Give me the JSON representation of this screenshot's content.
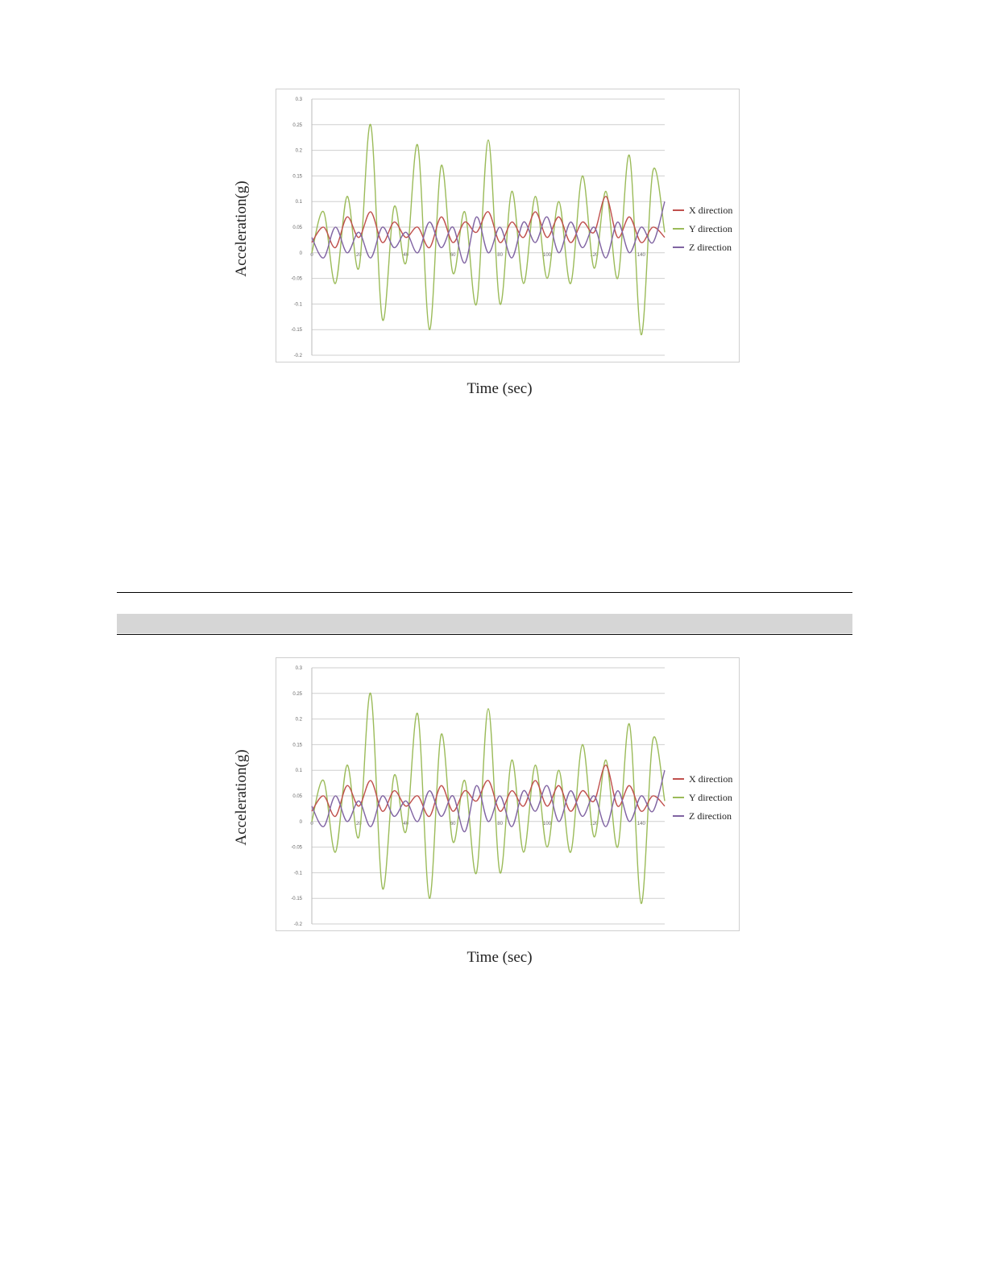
{
  "figures": [
    {
      "ylabel": "Acceleration(g)",
      "xlabel": "Time (sec)"
    },
    {
      "ylabel": "Acceleration(g)",
      "xlabel": "Time (sec)"
    }
  ],
  "chart_data": [
    {
      "type": "line",
      "xlabel": "Time (sec)",
      "ylabel": "Acceleration(g)",
      "xlim": [
        0,
        150
      ],
      "ylim": [
        -0.2,
        0.3
      ],
      "x_ticks": [
        "0",
        "20",
        "40",
        "60",
        "80",
        "100",
        "120",
        "140"
      ],
      "y_ticks": [
        "0.3",
        "0.25",
        "0.2",
        "0.15",
        "0.1",
        "0.05",
        "0",
        "-0.05",
        "-0.1",
        "-0.15",
        "-0.2"
      ],
      "grid": true,
      "legend_position": "right",
      "series": [
        {
          "name": "X direction",
          "color": "#c0504d",
          "x": [
            0,
            5,
            10,
            15,
            20,
            25,
            30,
            35,
            40,
            45,
            50,
            55,
            60,
            65,
            70,
            75,
            80,
            85,
            90,
            95,
            100,
            105,
            110,
            115,
            120,
            125,
            130,
            135,
            140,
            145,
            150
          ],
          "y": [
            0.02,
            0.05,
            0.01,
            0.07,
            0.03,
            0.08,
            0.02,
            0.06,
            0.03,
            0.05,
            0.01,
            0.07,
            0.02,
            0.06,
            0.04,
            0.08,
            0.02,
            0.06,
            0.03,
            0.08,
            0.03,
            0.07,
            0.02,
            0.06,
            0.04,
            0.11,
            0.03,
            0.07,
            0.02,
            0.05,
            0.03
          ]
        },
        {
          "name": "Y direction",
          "color": "#9bbb59",
          "x": [
            0,
            5,
            10,
            15,
            20,
            25,
            30,
            35,
            40,
            45,
            50,
            55,
            60,
            65,
            70,
            75,
            80,
            85,
            90,
            95,
            100,
            105,
            110,
            115,
            120,
            125,
            130,
            135,
            140,
            145,
            150
          ],
          "y": [
            0.0,
            0.08,
            -0.06,
            0.11,
            -0.03,
            0.25,
            -0.13,
            0.09,
            -0.02,
            0.21,
            -0.15,
            0.17,
            -0.04,
            0.08,
            -0.1,
            0.22,
            -0.1,
            0.12,
            -0.06,
            0.11,
            -0.05,
            0.1,
            -0.06,
            0.15,
            -0.03,
            0.12,
            -0.05,
            0.19,
            -0.16,
            0.16,
            0.04
          ]
        },
        {
          "name": "Z direction",
          "color": "#8064a2",
          "x": [
            0,
            5,
            10,
            15,
            20,
            25,
            30,
            35,
            40,
            45,
            50,
            55,
            60,
            65,
            70,
            75,
            80,
            85,
            90,
            95,
            100,
            105,
            110,
            115,
            120,
            125,
            130,
            135,
            140,
            145,
            150
          ],
          "y": [
            0.03,
            -0.01,
            0.05,
            0.0,
            0.04,
            -0.01,
            0.05,
            0.01,
            0.04,
            0.0,
            0.06,
            0.01,
            0.05,
            -0.02,
            0.07,
            0.0,
            0.05,
            -0.01,
            0.06,
            0.02,
            0.07,
            0.0,
            0.06,
            0.01,
            0.05,
            -0.01,
            0.06,
            0.0,
            0.05,
            0.02,
            0.1
          ]
        }
      ]
    },
    {
      "type": "line",
      "xlabel": "Time (sec)",
      "ylabel": "Acceleration(g)",
      "xlim": [
        0,
        150
      ],
      "ylim": [
        -0.2,
        0.3
      ],
      "x_ticks": [
        "0",
        "20",
        "40",
        "60",
        "80",
        "100",
        "120",
        "140"
      ],
      "y_ticks": [
        "0.3",
        "0.25",
        "0.2",
        "0.15",
        "0.1",
        "0.05",
        "0",
        "-0.05",
        "-0.1",
        "-0.15",
        "-0.2"
      ],
      "grid": true,
      "legend_position": "right",
      "series": [
        {
          "name": "X direction",
          "color": "#c0504d",
          "x": [
            0,
            5,
            10,
            15,
            20,
            25,
            30,
            35,
            40,
            45,
            50,
            55,
            60,
            65,
            70,
            75,
            80,
            85,
            90,
            95,
            100,
            105,
            110,
            115,
            120,
            125,
            130,
            135,
            140,
            145,
            150
          ],
          "y": [
            0.02,
            0.05,
            0.01,
            0.07,
            0.03,
            0.08,
            0.02,
            0.06,
            0.03,
            0.05,
            0.01,
            0.07,
            0.02,
            0.06,
            0.04,
            0.08,
            0.02,
            0.06,
            0.03,
            0.08,
            0.03,
            0.07,
            0.02,
            0.06,
            0.04,
            0.11,
            0.03,
            0.07,
            0.02,
            0.05,
            0.03
          ]
        },
        {
          "name": "Y direction",
          "color": "#9bbb59",
          "x": [
            0,
            5,
            10,
            15,
            20,
            25,
            30,
            35,
            40,
            45,
            50,
            55,
            60,
            65,
            70,
            75,
            80,
            85,
            90,
            95,
            100,
            105,
            110,
            115,
            120,
            125,
            130,
            135,
            140,
            145,
            150
          ],
          "y": [
            0.0,
            0.08,
            -0.06,
            0.11,
            -0.03,
            0.25,
            -0.13,
            0.09,
            -0.02,
            0.21,
            -0.15,
            0.17,
            -0.04,
            0.08,
            -0.1,
            0.22,
            -0.1,
            0.12,
            -0.06,
            0.11,
            -0.05,
            0.1,
            -0.06,
            0.15,
            -0.03,
            0.12,
            -0.05,
            0.19,
            -0.16,
            0.16,
            0.04
          ]
        },
        {
          "name": "Z direction",
          "color": "#8064a2",
          "x": [
            0,
            5,
            10,
            15,
            20,
            25,
            30,
            35,
            40,
            45,
            50,
            55,
            60,
            65,
            70,
            75,
            80,
            85,
            90,
            95,
            100,
            105,
            110,
            115,
            120,
            125,
            130,
            135,
            140,
            145,
            150
          ],
          "y": [
            0.03,
            -0.01,
            0.05,
            0.0,
            0.04,
            -0.01,
            0.05,
            0.01,
            0.04,
            0.0,
            0.06,
            0.01,
            0.05,
            -0.02,
            0.07,
            0.0,
            0.05,
            -0.01,
            0.06,
            0.02,
            0.07,
            0.0,
            0.06,
            0.01,
            0.05,
            -0.01,
            0.06,
            0.0,
            0.05,
            0.02,
            0.1
          ]
        }
      ]
    }
  ]
}
